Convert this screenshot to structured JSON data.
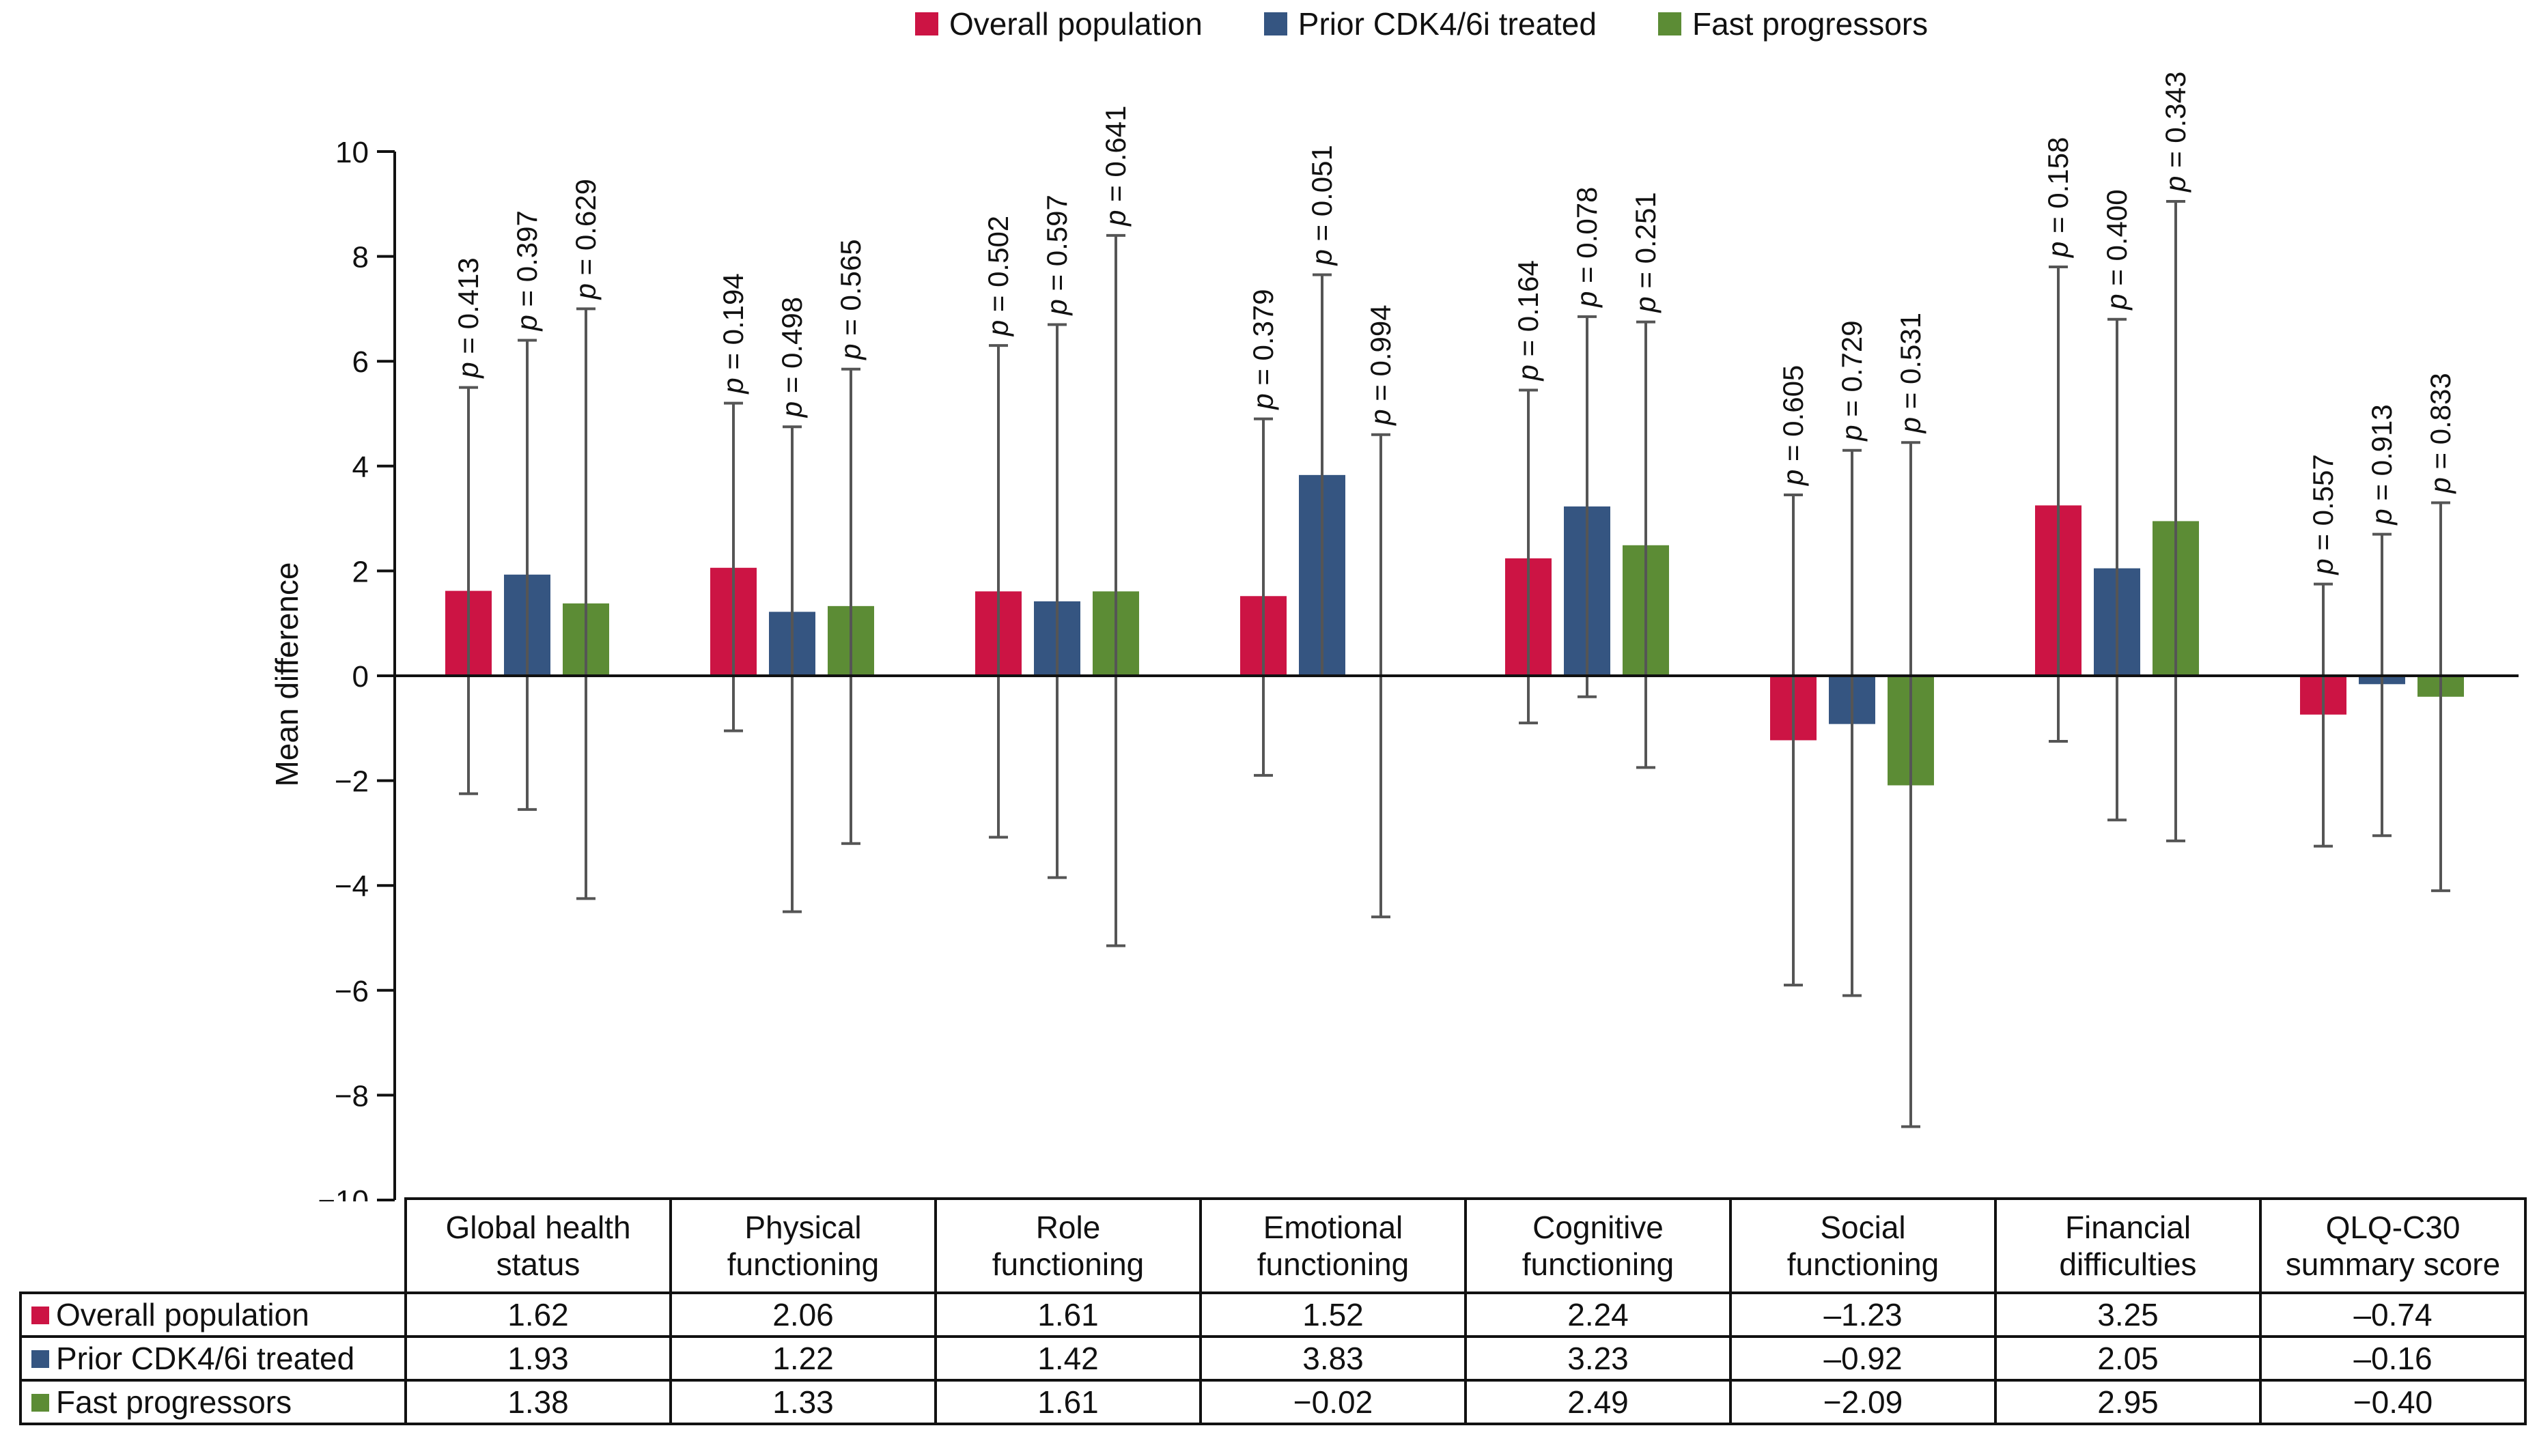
{
  "legend": [
    {
      "label": "Overall population",
      "color": "#cc1444"
    },
    {
      "label": "Prior CDK4/6i treated",
      "color": "#355581"
    },
    {
      "label": "Fast progressors",
      "color": "#5c8c35"
    }
  ],
  "chart_data": {
    "type": "bar",
    "title": "",
    "xlabel": "",
    "ylabel": "Mean difference",
    "ylim": [
      -10,
      10
    ],
    "yticks": [
      10,
      8,
      6,
      4,
      2,
      0,
      -2,
      -4,
      -6,
      -8,
      -10
    ],
    "ytick_labels": [
      "10",
      "8",
      "6",
      "4",
      "2",
      "0",
      "−2",
      "−4",
      "−6",
      "−8",
      "−10"
    ],
    "grid": false,
    "legend_position": "top",
    "categories": [
      [
        "Global health",
        "status"
      ],
      [
        "Physical",
        "functioning"
      ],
      [
        "Role",
        "functioning"
      ],
      [
        "Emotional",
        "functioning"
      ],
      [
        "Cognitive",
        "functioning"
      ],
      [
        "Social",
        "functioning"
      ],
      [
        "Financial",
        "difficulties"
      ],
      [
        "QLQ-C30",
        "summary score"
      ]
    ],
    "series": [
      {
        "name": "Overall population",
        "color": "#cc1444",
        "values": [
          1.62,
          2.06,
          1.61,
          1.52,
          2.24,
          -1.23,
          3.25,
          -0.74
        ],
        "value_labels": [
          "1.62",
          "2.06",
          "1.61",
          "1.52",
          "2.24",
          "–1.23",
          "3.25",
          "–0.74"
        ],
        "ci_low": [
          -2.25,
          -1.05,
          -3.08,
          -1.9,
          -0.9,
          -5.9,
          -1.25,
          -3.25
        ],
        "ci_high": [
          5.5,
          5.2,
          6.3,
          4.9,
          5.45,
          3.45,
          7.8,
          1.75
        ],
        "p_values": [
          "0.413",
          "0.194",
          "0.502",
          "0.379",
          "0.164",
          "0.605",
          "0.158",
          "0.557"
        ]
      },
      {
        "name": "Prior CDK4/6i treated",
        "color": "#355581",
        "values": [
          1.93,
          1.22,
          1.42,
          3.83,
          3.23,
          -0.92,
          2.05,
          -0.16
        ],
        "value_labels": [
          "1.93",
          "1.22",
          "1.42",
          "3.83",
          "3.23",
          "–0.92",
          "2.05",
          "–0.16"
        ],
        "ci_low": [
          -2.55,
          -4.5,
          -3.85,
          0.0,
          -0.4,
          -6.1,
          -2.75,
          -3.05
        ],
        "ci_high": [
          6.4,
          4.75,
          6.7,
          7.65,
          6.85,
          4.3,
          6.8,
          2.7
        ],
        "p_values": [
          "0.397",
          "0.498",
          "0.597",
          "0.051",
          "0.078",
          "0.729",
          "0.400",
          "0.913"
        ]
      },
      {
        "name": "Fast progressors",
        "color": "#5c8c35",
        "values": [
          1.38,
          1.33,
          1.61,
          -0.02,
          2.49,
          -2.09,
          2.95,
          -0.4
        ],
        "value_labels": [
          "1.38",
          "1.33",
          "1.61",
          "−0.02",
          "2.49",
          "−2.09",
          "2.95",
          "−0.40"
        ],
        "ci_low": [
          -4.25,
          -3.2,
          -5.15,
          -4.6,
          -1.75,
          -8.6,
          -3.15,
          -4.1
        ],
        "ci_high": [
          7.0,
          5.85,
          8.4,
          4.6,
          6.75,
          4.45,
          9.05,
          3.3
        ],
        "p_values": [
          "0.629",
          "0.565",
          "0.641",
          "0.994",
          "0.251",
          "0.531",
          "0.343",
          "0.833"
        ]
      }
    ]
  }
}
